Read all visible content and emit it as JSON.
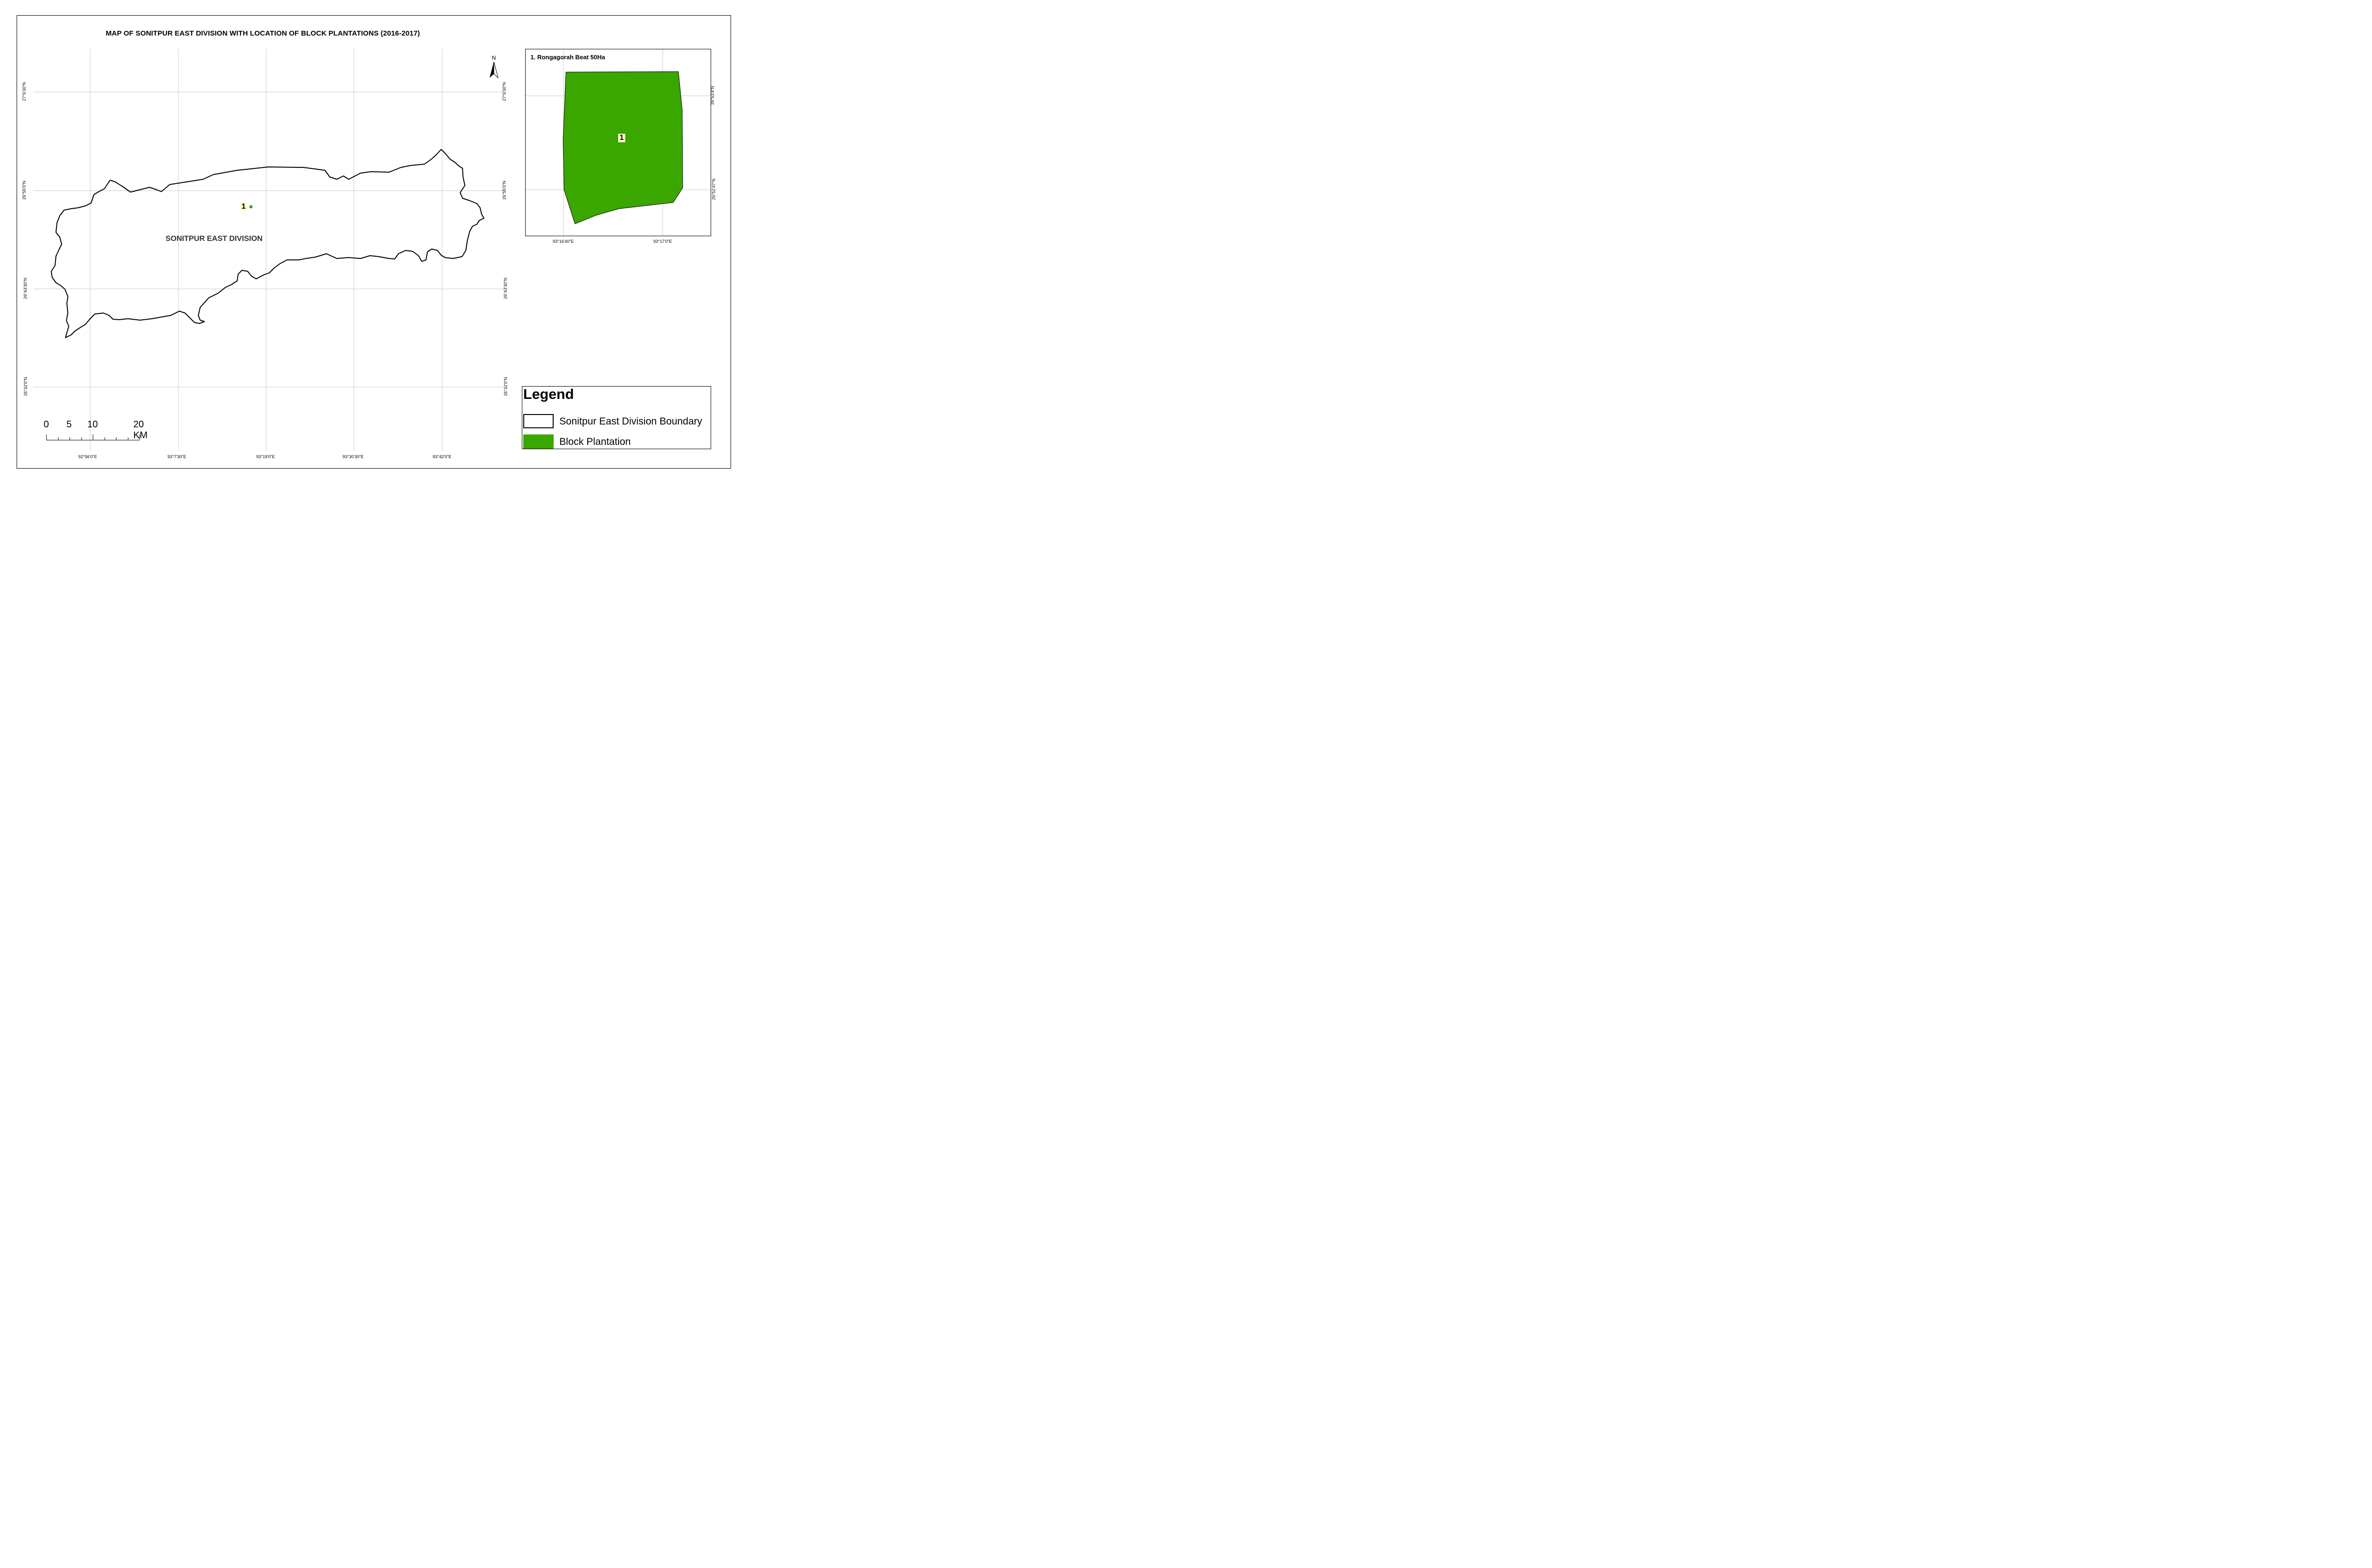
{
  "title": "MAP OF SONITPUR EAST DIVISION WITH LOCATION OF BLOCK PLANTATIONS (2016-2017)",
  "main_map": {
    "x_ticks": [
      "92°56'0\"E",
      "93°7'30\"E",
      "93°19'0\"E",
      "93°30'30\"E",
      "93°42'0\"E"
    ],
    "y_ticks": [
      "27°6'30\"N",
      "26°55'0\"N",
      "26°43'30\"N",
      "26°32'0\"N"
    ],
    "division_label": "SONITPUR EAST DIVISION",
    "plantation_marker": "1",
    "north_arrow_label": "N",
    "scale_bar": {
      "labels": [
        "0",
        "5",
        "10",
        "20 KM"
      ]
    }
  },
  "inset_map": {
    "title": "1. Rongagorah Beat 50Ha",
    "marker": "1",
    "x_ticks": [
      "93°16'40\"E",
      "93°17'0\"E"
    ],
    "y_ticks": [
      "26°53'4\"N",
      "26°52'47\"N"
    ]
  },
  "legend": {
    "title": "Legend",
    "items": [
      {
        "label": "Sonitpur East Division Boundary",
        "symbol": "outline"
      },
      {
        "label": "Block Plantation",
        "symbol": "fill",
        "color": "#3aa600"
      }
    ]
  },
  "colors": {
    "plantation": "#3aa600",
    "grid": "#c8c8c8",
    "marker_bg": "#fdfbd0"
  }
}
